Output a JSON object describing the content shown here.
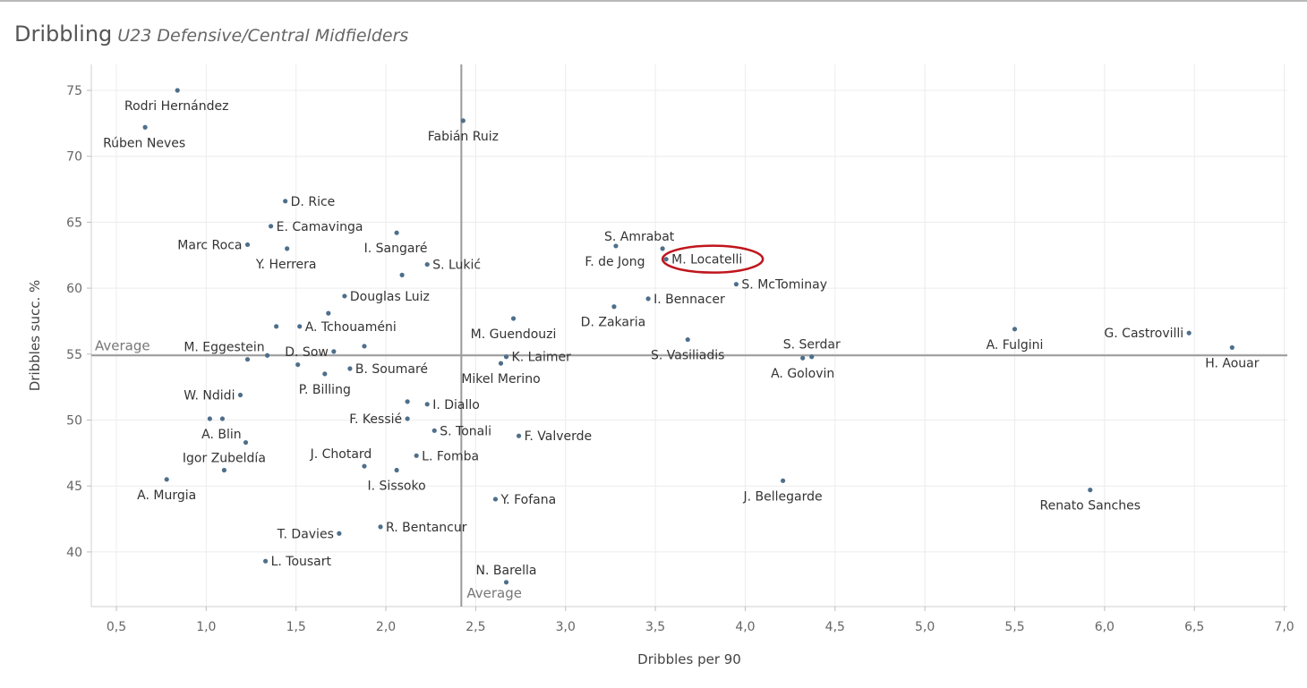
{
  "title": "Dribbling",
  "subtitle": "U23 Defensive/Central Midfielders",
  "chart_data": {
    "type": "scatter",
    "xlabel": "Dribbles per 90",
    "ylabel": "Dribbles succ. %",
    "xlim": [
      0.35,
      7.05
    ],
    "ylim": [
      35.9,
      77.3
    ],
    "xticks": [
      "0,5",
      "1,0",
      "1,5",
      "2,0",
      "2,5",
      "3,0",
      "3,5",
      "4,0",
      "4,5",
      "5,0",
      "5,5",
      "6,0",
      "6,5",
      "7,0"
    ],
    "xtick_values": [
      0.5,
      1.0,
      1.5,
      2.0,
      2.5,
      3.0,
      3.5,
      4.0,
      4.5,
      5.0,
      5.5,
      6.0,
      6.5,
      7.0
    ],
    "yticks": [
      "40",
      "45",
      "50",
      "55",
      "60",
      "65",
      "70",
      "75"
    ],
    "ytick_values": [
      40,
      45,
      50,
      55,
      60,
      65,
      70,
      75
    ],
    "grid": true,
    "average_x": 2.42,
    "average_y": 54.9,
    "average_label": "Average",
    "marker_color": "#4e6f8b",
    "highlight_color": "#c0151c",
    "highlight_player": "M. Locatelli",
    "points": [
      {
        "label": "Rodri Hernández",
        "x": 0.84,
        "y": 75.0,
        "pos": "below-left"
      },
      {
        "label": "Rúben Neves",
        "x": 0.66,
        "y": 72.2,
        "pos": "below-left"
      },
      {
        "label": "Fabián Ruiz",
        "x": 2.43,
        "y": 72.7,
        "pos": "below"
      },
      {
        "label": "D. Rice",
        "x": 1.44,
        "y": 66.6,
        "pos": "right"
      },
      {
        "label": "E. Camavinga",
        "x": 1.36,
        "y": 64.7,
        "pos": "right"
      },
      {
        "label": "Marc Roca",
        "x": 1.23,
        "y": 63.3,
        "pos": "left"
      },
      {
        "label": "Y. Herrera",
        "x": 1.45,
        "y": 63.0,
        "pos": "below-left"
      },
      {
        "label": "I. Sangaré",
        "x": 2.06,
        "y": 64.2,
        "pos": "below-left"
      },
      {
        "label": "",
        "x": 2.09,
        "y": 61.0,
        "pos": "none"
      },
      {
        "label": "S. Lukić",
        "x": 2.23,
        "y": 61.8,
        "pos": "right"
      },
      {
        "label": "S. Amrabat",
        "x": 3.54,
        "y": 63.0,
        "pos": "above-left"
      },
      {
        "label": "F. de Jong",
        "x": 3.28,
        "y": 63.2,
        "pos": "below-left"
      },
      {
        "label": "M. Locatelli",
        "x": 3.56,
        "y": 62.2,
        "pos": "right"
      },
      {
        "label": "S. McTominay",
        "x": 3.95,
        "y": 60.3,
        "pos": "right"
      },
      {
        "label": "Douglas Luiz",
        "x": 1.77,
        "y": 59.4,
        "pos": "right"
      },
      {
        "label": "I. Bennacer",
        "x": 3.46,
        "y": 59.2,
        "pos": "right"
      },
      {
        "label": "D. Zakaria",
        "x": 3.27,
        "y": 58.6,
        "pos": "below-left"
      },
      {
        "label": "",
        "x": 1.68,
        "y": 58.1,
        "pos": "none"
      },
      {
        "label": "M. Guendouzi",
        "x": 2.71,
        "y": 57.7,
        "pos": "below"
      },
      {
        "label": "A. Tchouaméni",
        "x": 1.52,
        "y": 57.1,
        "pos": "right"
      },
      {
        "label": "",
        "x": 1.39,
        "y": 57.1,
        "pos": "none"
      },
      {
        "label": "A. Fulgini",
        "x": 5.5,
        "y": 56.9,
        "pos": "below"
      },
      {
        "label": "G. Castrovilli",
        "x": 6.47,
        "y": 56.6,
        "pos": "left"
      },
      {
        "label": "S. Vasiliadis",
        "x": 3.68,
        "y": 56.1,
        "pos": "below"
      },
      {
        "label": "M. Eggestein",
        "x": 1.23,
        "y": 54.6,
        "pos": "above-left"
      },
      {
        "label": "",
        "x": 1.88,
        "y": 55.6,
        "pos": "none"
      },
      {
        "label": "H. Aouar",
        "x": 6.71,
        "y": 55.5,
        "pos": "below"
      },
      {
        "label": "D. Sow",
        "x": 1.71,
        "y": 55.2,
        "pos": "left"
      },
      {
        "label": "S. Serdar",
        "x": 4.37,
        "y": 54.8,
        "pos": "above"
      },
      {
        "label": "",
        "x": 1.34,
        "y": 54.9,
        "pos": "none"
      },
      {
        "label": "A. Golovin",
        "x": 4.32,
        "y": 54.7,
        "pos": "below"
      },
      {
        "label": "K. Laimer",
        "x": 2.67,
        "y": 54.8,
        "pos": "right"
      },
      {
        "label": "Mikel Merino",
        "x": 2.64,
        "y": 54.3,
        "pos": "below"
      },
      {
        "label": "",
        "x": 1.51,
        "y": 54.2,
        "pos": "none"
      },
      {
        "label": "B. Soumaré",
        "x": 1.8,
        "y": 53.9,
        "pos": "right"
      },
      {
        "label": "P. Billing",
        "x": 1.66,
        "y": 53.5,
        "pos": "below"
      },
      {
        "label": "W. Ndidi",
        "x": 1.19,
        "y": 51.9,
        "pos": "left"
      },
      {
        "label": "",
        "x": 2.12,
        "y": 51.4,
        "pos": "none"
      },
      {
        "label": "I. Diallo",
        "x": 2.23,
        "y": 51.2,
        "pos": "right"
      },
      {
        "label": "F. Kessié",
        "x": 2.12,
        "y": 50.1,
        "pos": "left"
      },
      {
        "label": "",
        "x": 1.02,
        "y": 50.1,
        "pos": "none"
      },
      {
        "label": "A. Blin",
        "x": 1.09,
        "y": 50.1,
        "pos": "below-left"
      },
      {
        "label": "S. Tonali",
        "x": 2.27,
        "y": 49.2,
        "pos": "right"
      },
      {
        "label": "F. Valverde",
        "x": 2.74,
        "y": 48.8,
        "pos": "right"
      },
      {
        "label": "",
        "x": 1.22,
        "y": 48.3,
        "pos": "none"
      },
      {
        "label": "J. Chotard",
        "x": 1.88,
        "y": 46.5,
        "pos": "above-left"
      },
      {
        "label": "L. Fomba",
        "x": 2.17,
        "y": 47.3,
        "pos": "right"
      },
      {
        "label": "Igor Zubeldía",
        "x": 1.1,
        "y": 46.2,
        "pos": "above"
      },
      {
        "label": "I. Sissoko",
        "x": 2.06,
        "y": 46.2,
        "pos": "below"
      },
      {
        "label": "A. Murgia",
        "x": 0.78,
        "y": 45.5,
        "pos": "below"
      },
      {
        "label": "J. Bellegarde",
        "x": 4.21,
        "y": 45.4,
        "pos": "below"
      },
      {
        "label": "Renato Sanches",
        "x": 5.92,
        "y": 44.7,
        "pos": "below"
      },
      {
        "label": "Y. Fofana",
        "x": 2.61,
        "y": 44.0,
        "pos": "right"
      },
      {
        "label": "R. Bentancur",
        "x": 1.97,
        "y": 41.9,
        "pos": "right"
      },
      {
        "label": "T. Davies",
        "x": 1.74,
        "y": 41.4,
        "pos": "left"
      },
      {
        "label": "L. Tousart",
        "x": 1.33,
        "y": 39.3,
        "pos": "right"
      },
      {
        "label": "N. Barella",
        "x": 2.67,
        "y": 37.7,
        "pos": "above"
      }
    ]
  }
}
